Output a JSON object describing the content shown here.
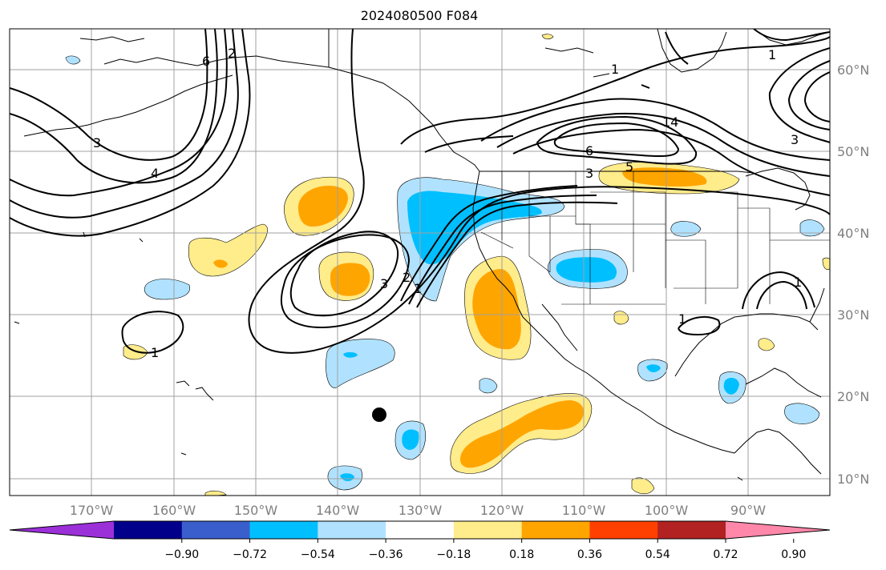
{
  "title": "2024080500 F084",
  "lat_labels": [
    "60°N",
    "50°N",
    "40°N",
    "30°N",
    "20°N",
    "10°N"
  ],
  "lon_labels": [
    "170°W",
    "160°W",
    "150°W",
    "140°W",
    "130°W",
    "120°W",
    "110°W",
    "100°W",
    "90°W"
  ],
  "colorbar": {
    "ticks": [
      "−0.90",
      "−0.72",
      "−0.54",
      "−0.36",
      "−0.18",
      "0.18",
      "0.36",
      "0.54",
      "0.72",
      "0.90"
    ],
    "colors": [
      "#9b30d9",
      "#00008b",
      "#3a5fcd",
      "#00bfff",
      "#b0e2ff",
      "#ffffff",
      "#ffec8b",
      "#ffa500",
      "#ff4000",
      "#b22222",
      "#ff88aa"
    ]
  },
  "contour_labels": [
    "1",
    "1",
    "1",
    "1",
    "1",
    "1",
    "2",
    "2",
    "3",
    "3",
    "3",
    "3",
    "4",
    "5",
    "6",
    "6",
    "14"
  ],
  "fill_colors": {
    "light_yellow": "#ffec8b",
    "orange": "#ffa500",
    "light_blue": "#b0e2ff",
    "deep_sky": "#00bfff"
  },
  "marker": "storm-center-dot"
}
